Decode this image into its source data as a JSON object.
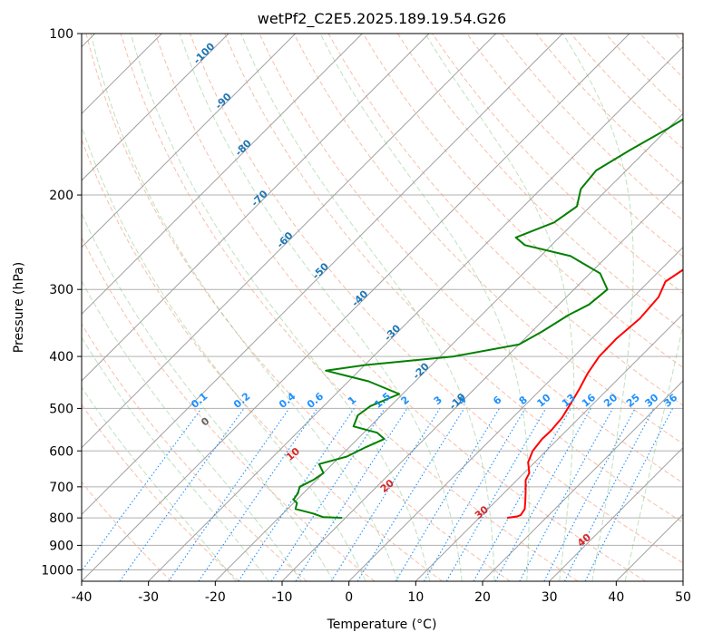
{
  "chart_data": {
    "type": "line",
    "title": "wetPf2_C2E5.2025.189.19.54.G26",
    "xlabel": "Temperature (°C)",
    "ylabel": "Pressure (hPa)",
    "xlim": [
      -40,
      50
    ],
    "ylim": [
      1050,
      100
    ],
    "y_scale": "log",
    "grid": true,
    "x_ticks": [
      "-40",
      "-30",
      "-20",
      "-10",
      "0",
      "10",
      "20",
      "30",
      "40",
      "50"
    ],
    "y_ticks": [
      "100",
      "200",
      "300",
      "400",
      "500",
      "600",
      "700",
      "800",
      "900",
      "1000"
    ],
    "series": [
      {
        "color": "#ff0000",
        "points": [
          [
            14.2,
            800
          ],
          [
            15.5,
            795
          ],
          [
            15.8,
            790
          ],
          [
            15.5,
            770
          ],
          [
            14.2,
            740
          ],
          [
            12.8,
            710
          ],
          [
            11.3,
            680
          ],
          [
            10.8,
            660
          ],
          [
            9.0,
            630
          ],
          [
            8.0,
            600
          ],
          [
            7.6,
            570
          ],
          [
            7.7,
            550
          ],
          [
            7.4,
            520
          ],
          [
            6.6,
            490
          ],
          [
            5.7,
            460
          ],
          [
            4.6,
            430
          ],
          [
            3.8,
            400
          ],
          [
            3.7,
            370
          ],
          [
            4.2,
            340
          ],
          [
            3.8,
            310
          ],
          [
            2.5,
            290
          ],
          [
            3.4,
            275
          ],
          [
            5.1,
            260
          ],
          [
            6.0,
            245
          ],
          [
            5.9,
            230
          ],
          [
            6.0,
            215
          ],
          [
            7.8,
            200
          ],
          [
            10.7,
            180
          ],
          [
            13.3,
            160
          ],
          [
            14.3,
            145
          ],
          [
            15.0,
            135
          ],
          [
            15.0,
            125
          ],
          [
            15.0,
            115
          ],
          [
            16.2,
            108
          ],
          [
            17.0,
            100
          ]
        ]
      },
      {
        "color": "#008000",
        "points": [
          [
            -10.5,
            800
          ],
          [
            -13.5,
            797
          ],
          [
            -15.5,
            785
          ],
          [
            -18.8,
            770
          ],
          [
            -19.5,
            750
          ],
          [
            -20.5,
            740
          ],
          [
            -20.8,
            720
          ],
          [
            -21.5,
            700
          ],
          [
            -20.5,
            680
          ],
          [
            -20.0,
            660
          ],
          [
            -22.0,
            635
          ],
          [
            -19.0,
            615
          ],
          [
            -17.5,
            590
          ],
          [
            -16.0,
            570
          ],
          [
            -18.0,
            555
          ],
          [
            -22.5,
            540
          ],
          [
            -23.5,
            515
          ],
          [
            -23.0,
            495
          ],
          [
            -20.5,
            470
          ],
          [
            -27.0,
            445
          ],
          [
            -35.0,
            425
          ],
          [
            -30.0,
            415
          ],
          [
            -18.0,
            400
          ],
          [
            -10.0,
            380
          ],
          [
            -8.5,
            360
          ],
          [
            -7.0,
            335
          ],
          [
            -5.5,
            320
          ],
          [
            -5.0,
            300
          ],
          [
            -8.5,
            280
          ],
          [
            -15.5,
            260
          ],
          [
            -24.0,
            248
          ],
          [
            -26.5,
            240
          ],
          [
            -23.0,
            225
          ],
          [
            -22.0,
            210
          ],
          [
            -24.0,
            195
          ],
          [
            -24.5,
            180
          ],
          [
            -22.5,
            165
          ],
          [
            -20.0,
            150
          ],
          [
            -18.5,
            140
          ],
          [
            -16.5,
            130
          ],
          [
            -14.0,
            120
          ],
          [
            -11.0,
            110
          ],
          [
            -8.5,
            100
          ]
        ]
      }
    ],
    "isotherm_labels": [
      "-100",
      "-90",
      "-80",
      "-70",
      "-60",
      "-50",
      "-40",
      "-30",
      "-20",
      "-10"
    ],
    "mixing_ratio_labels": [
      "0.1",
      "0.2",
      "0.4",
      "0.6",
      "1",
      "1.5",
      "2",
      "3",
      "4",
      "6",
      "8",
      "10",
      "13",
      "16",
      "20",
      "25",
      "30",
      "36"
    ],
    "dry_adiabat_labels": [
      "0",
      "10",
      "20",
      "30",
      "40"
    ]
  }
}
